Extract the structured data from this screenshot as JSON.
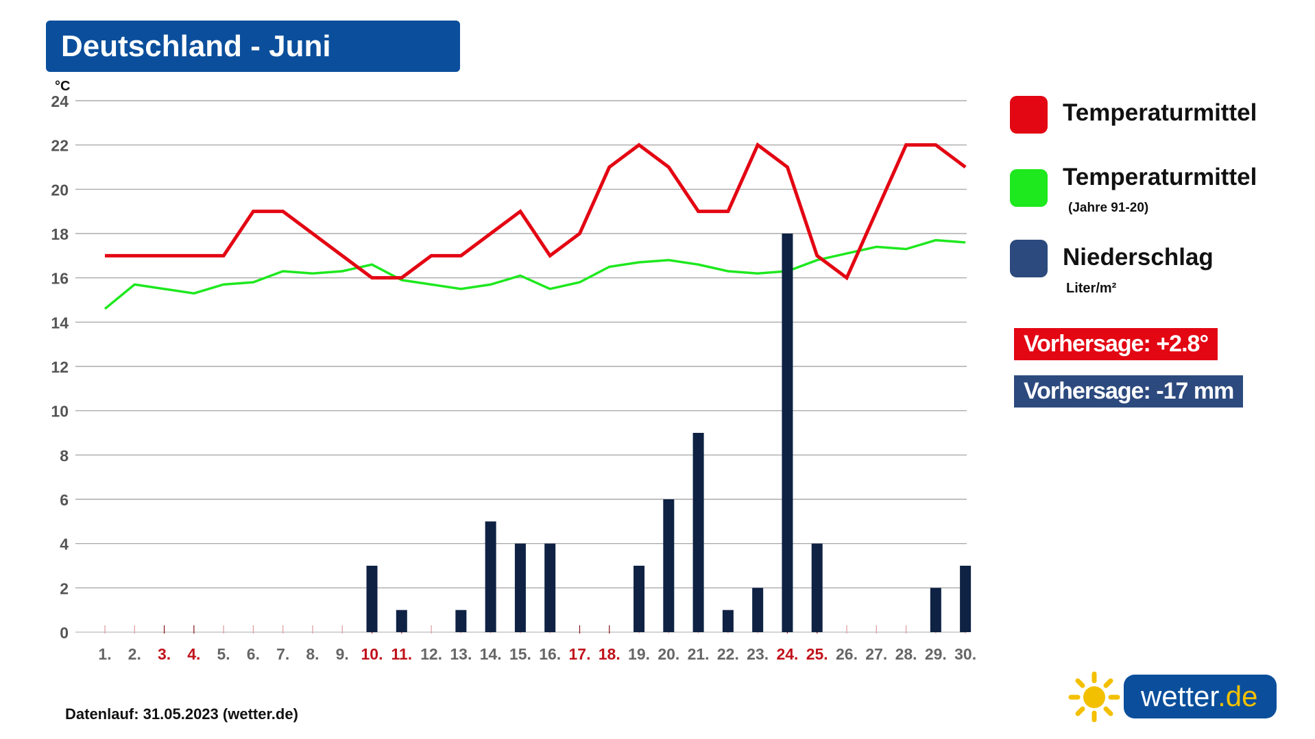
{
  "title": "Deutschland - Juni",
  "legend": {
    "items": [
      {
        "label": "Temperaturmittel",
        "sublabel": "",
        "color": "#e30613"
      },
      {
        "label": "Temperaturmittel",
        "sublabel": "(Jahre 91-20)",
        "color": "#1ee81e"
      },
      {
        "label": "Niederschlag",
        "sublabel": "Liter/m²",
        "color": "#2c4a7e"
      }
    ]
  },
  "badges": {
    "temperature": {
      "text": "Vorhersage: +2.8°",
      "color": "#e30613"
    },
    "precipitation": {
      "text": "Vorhersage: -17 mm",
      "color": "#2c4a7e"
    }
  },
  "footer": "Datenlauf: 31.05.2023 (wetter.de)",
  "logo": {
    "name": "wetter",
    "tld": ".de",
    "icon": "sun-icon"
  },
  "chart_data": {
    "type": "line+bar",
    "ylabel": "°C",
    "ylim": [
      0,
      24
    ],
    "yticks": [
      0,
      2,
      4,
      6,
      8,
      10,
      12,
      14,
      16,
      18,
      20,
      22,
      24
    ],
    "grid": true,
    "legend_position": "right",
    "categories": [
      "1.",
      "2.",
      "3.",
      "4.",
      "5.",
      "6.",
      "7.",
      "8.",
      "9.",
      "10.",
      "11.",
      "12.",
      "13.",
      "14.",
      "15.",
      "16.",
      "17.",
      "18.",
      "19.",
      "20.",
      "21.",
      "22.",
      "23.",
      "24.",
      "25.",
      "26.",
      "27.",
      "28.",
      "29.",
      "30."
    ],
    "highlighted_days": [
      "3.",
      "4.",
      "10.",
      "11.",
      "17.",
      "18.",
      "24.",
      "25."
    ],
    "highlight_color": "#c0121b",
    "series": [
      {
        "name": "Temperaturmittel",
        "kind": "line",
        "color": "#e30613",
        "values": [
          17,
          17,
          17,
          17,
          17,
          19,
          19,
          18,
          17,
          16,
          16,
          17,
          17,
          18,
          19,
          17,
          18,
          21,
          22,
          21,
          19,
          19,
          22,
          21,
          17,
          16,
          19,
          22,
          22,
          21
        ]
      },
      {
        "name": "Temperaturmittel (Jahre 91-20)",
        "kind": "line",
        "color": "#1ee81e",
        "values": [
          14.6,
          15.7,
          15.5,
          15.3,
          15.7,
          15.8,
          16.3,
          16.2,
          16.3,
          16.6,
          15.9,
          15.7,
          15.5,
          15.7,
          16.1,
          15.5,
          15.8,
          16.5,
          16.7,
          16.8,
          16.6,
          16.3,
          16.2,
          16.3,
          16.8,
          17.1,
          17.4,
          17.3,
          17.7,
          17.6
        ]
      },
      {
        "name": "Niederschlag",
        "kind": "bar",
        "color": "#0f2244",
        "values": [
          0,
          0,
          0,
          0,
          0,
          0,
          0,
          0,
          0,
          3,
          1,
          0,
          1,
          5,
          4,
          4,
          0,
          0,
          3,
          6,
          9,
          1,
          2,
          18,
          4,
          0,
          0,
          0,
          2,
          3
        ]
      }
    ]
  }
}
